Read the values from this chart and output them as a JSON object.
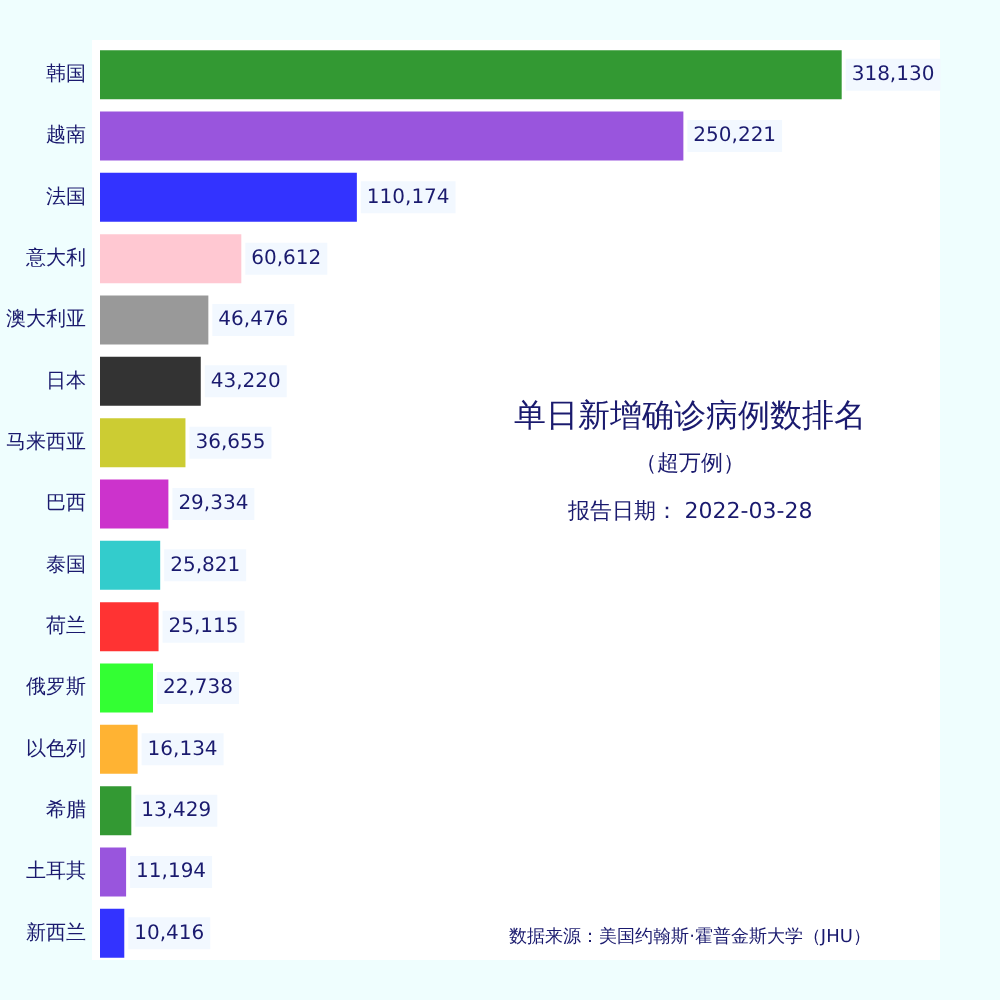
{
  "chart_data": {
    "type": "bar",
    "orientation": "horizontal",
    "title": "单日新增确诊病例数排名",
    "subtitle": "（超万例）",
    "categories": [
      "韩国",
      "越南",
      "法国",
      "意大利",
      "澳大利亚",
      "日本",
      "马来西亚",
      "巴西",
      "泰国",
      "荷兰",
      "俄罗斯",
      "以色列",
      "希腊",
      "土耳其",
      "新西兰"
    ],
    "values": [
      318130,
      250221,
      110174,
      60612,
      46476,
      43220,
      36655,
      29334,
      25821,
      25115,
      22738,
      16134,
      13429,
      11194,
      10416
    ],
    "value_labels": [
      "318,130",
      "250,221",
      "110,174",
      "60,612",
      "46,476",
      "43,220",
      "36,655",
      "29,334",
      "25,821",
      "25,115",
      "22,738",
      "16,134",
      "13,429",
      "11,194",
      "10,416"
    ],
    "colors": [
      "#339933",
      "#9955dd",
      "#3333ff",
      "#ffc8d2",
      "#999999",
      "#333333",
      "#cccc33",
      "#cc33cc",
      "#33cccc",
      "#ff3333",
      "#33ff33",
      "#ffb333",
      "#339933",
      "#9955dd",
      "#3333ff"
    ],
    "annotations": [
      "报告日期：  2022-03-28",
      "数据来源：美国约翰斯·霍普金斯大学（JHU）"
    ],
    "legend": false,
    "grid": false
  }
}
